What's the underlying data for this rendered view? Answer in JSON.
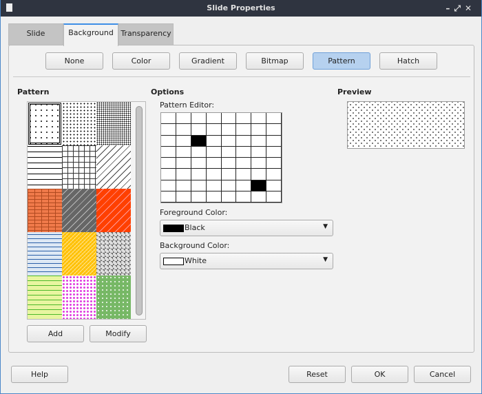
{
  "window": {
    "title": "Slide Properties",
    "controls": [
      "minimize",
      "maximize",
      "close"
    ]
  },
  "tabs": [
    {
      "label": "Slide"
    },
    {
      "label": "Background",
      "active": true
    },
    {
      "label": "Transparency"
    }
  ],
  "fill_buttons": [
    {
      "label": "None"
    },
    {
      "label": "Color"
    },
    {
      "label": "Gradient"
    },
    {
      "label": "Bitmap"
    },
    {
      "label": "Pattern",
      "selected": true
    },
    {
      "label": "Hatch"
    }
  ],
  "pattern": {
    "heading": "Pattern",
    "add": "Add",
    "modify": "Modify",
    "tiles": [
      "dots-sparse",
      "dots-medium",
      "dots-dense",
      "diagonal-dashes",
      "dotted-grid",
      "diagonal-slashes",
      "orange-bricks",
      "gray-diagonal",
      "red-scales",
      "blue-waves",
      "yellow-weave",
      "gray-checker",
      "lime-dashes",
      "magenta-dots",
      "green-sprinkle"
    ],
    "selected_index": 0
  },
  "options": {
    "heading": "Options",
    "editor_label": "Pattern Editor:",
    "editor_on_cells": [
      [
        2,
        2
      ],
      [
        6,
        6
      ]
    ],
    "fg_label": "Foreground Color:",
    "fg_value": "Black",
    "fg_color": "#000000",
    "bg_label": "Background Color:",
    "bg_value": "White",
    "bg_color": "#ffffff"
  },
  "preview": {
    "heading": "Preview"
  },
  "footer": {
    "help": "Help",
    "reset": "Reset",
    "ok": "OK",
    "cancel": "Cancel"
  }
}
